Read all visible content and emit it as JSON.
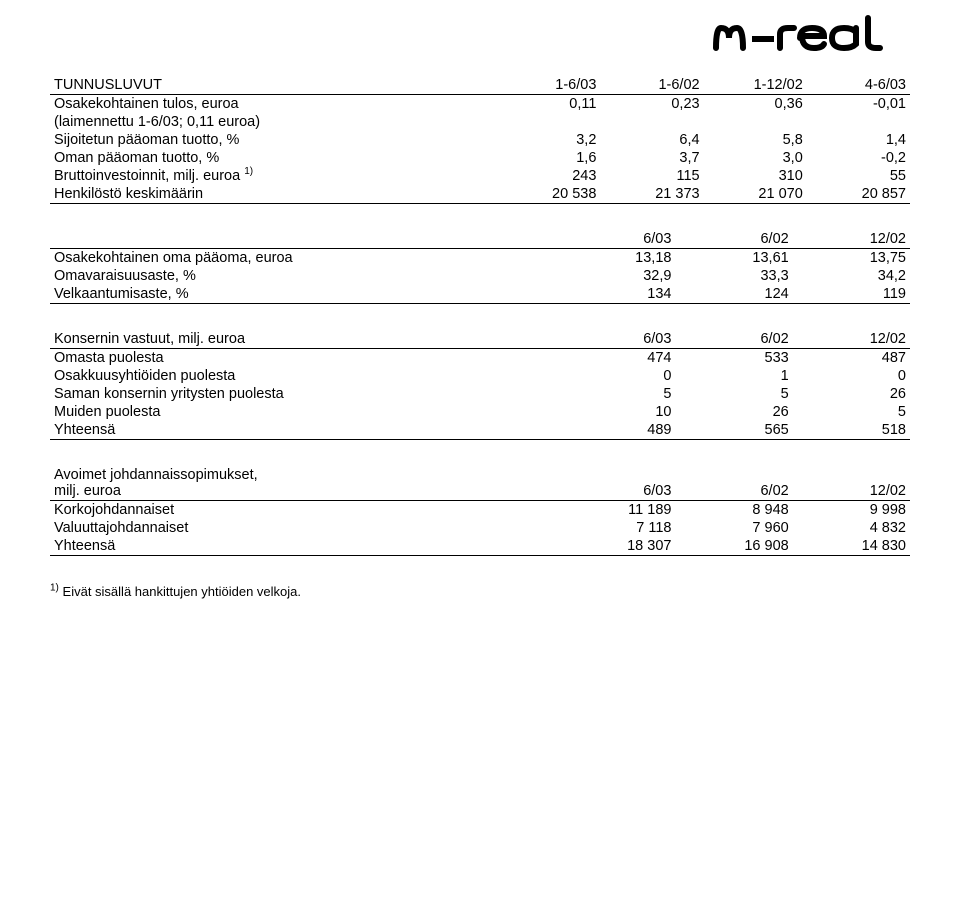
{
  "table1": {
    "headers": [
      "TUNNUSLUVUT",
      "1-6/03",
      "1-6/02",
      "1-12/02",
      "4-6/03"
    ],
    "rows": [
      [
        "Osakekohtainen tulos, euroa",
        "0,11",
        "0,23",
        "0,36",
        "-0,01"
      ],
      [
        "(laimennettu 1-6/03; 0,11 euroa)",
        "",
        "",
        "",
        ""
      ],
      [
        "Sijoitetun pääoman tuotto, %",
        "3,2",
        "6,4",
        "5,8",
        "1,4"
      ],
      [
        "Oman pääoman tuotto, %",
        "1,6",
        "3,7",
        "3,0",
        "-0,2"
      ],
      [
        "Bruttoinvestoinnit, milj. euroa <sup>1)</sup>",
        "243",
        "115",
        "310",
        "55"
      ],
      [
        "Henkilöstö keskimäärin",
        "20 538",
        "21 373",
        "21 070",
        "20 857"
      ]
    ]
  },
  "table2": {
    "headers": [
      "",
      "6/03",
      "6/02",
      "12/02"
    ],
    "rows": [
      [
        "Osakekohtainen oma pääoma, euroa",
        "13,18",
        "13,61",
        "13,75"
      ],
      [
        "Omavaraisuusaste, %",
        "32,9",
        "33,3",
        "34,2"
      ],
      [
        "Velkaantumisaste, %",
        "134",
        "124",
        "119"
      ]
    ]
  },
  "table3": {
    "headers": [
      "Konsernin vastuut, milj. euroa",
      "6/03",
      "6/02",
      "12/02"
    ],
    "rows": [
      [
        "Omasta puolesta",
        "474",
        "533",
        "487"
      ],
      [
        "Osakkuusyhtiöiden puolesta",
        "0",
        "1",
        "0"
      ],
      [
        "Saman konsernin yritysten puolesta",
        "5",
        "5",
        "26"
      ],
      [
        "Muiden puolesta",
        "10",
        "26",
        "5"
      ],
      [
        "Yhteensä",
        "489",
        "565",
        "518"
      ]
    ]
  },
  "table4": {
    "headers": [
      "Avoimet johdannaissopimukset,<br>milj. euroa",
      "6/03",
      "6/02",
      "12/02"
    ],
    "rows": [
      [
        "Korkojohdannaiset",
        "11 189",
        "8 948",
        "9 998"
      ],
      [
        "Valuuttajohdannaiset",
        "7 118",
        "7 960",
        "4 832"
      ],
      [
        "Yhteensä",
        "18 307",
        "16 908",
        "14 830"
      ]
    ]
  },
  "footnote": "Eivät sisällä hankittujen yhtiöiden velkoja.",
  "footnote_marker": "1)"
}
